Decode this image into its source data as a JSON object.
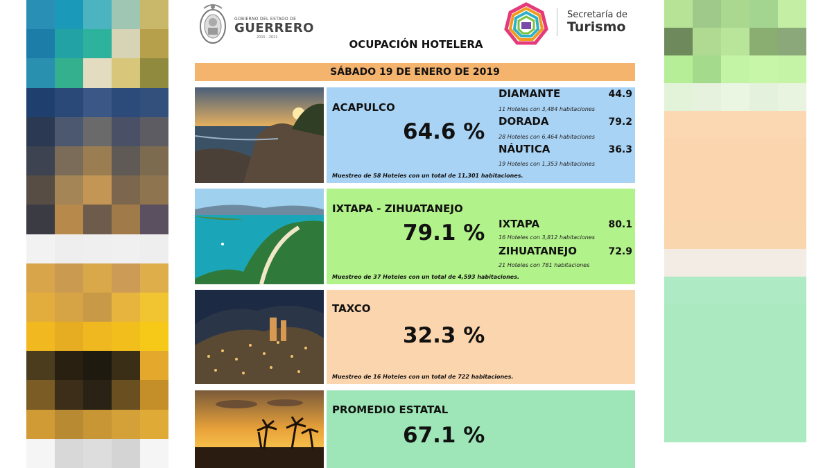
{
  "header": {
    "gov_small": "GOBIERNO DEL ESTADO DE",
    "gov_name": "GUERRERO",
    "gov_years": "2015 - 2021",
    "secretaria": "Secretaría de",
    "turismo": "Turismo",
    "title": "OCUPACIÓN HOTELERA"
  },
  "date": "SÁBADO 19 DE ENERO DE 2019",
  "colors": {
    "acapulco_bg": "#a9d3f5",
    "ixtapa_bg": "#b2f28a",
    "taxco_bg": "#fbd5ad",
    "promedio_bg": "#9ee6b7",
    "date_bar": "#f5b46e"
  },
  "acapulco": {
    "name": "ACAPULCO",
    "pct": "64.6 %",
    "zones": [
      {
        "name": "DIAMANTE",
        "value": "44.9",
        "detail": "11 Hoteles con 3,484 habitaciones"
      },
      {
        "name": "DORADA",
        "value": "79.2",
        "detail": "28 Hoteles con 6,464 habitaciones"
      },
      {
        "name": "NÁUTICA",
        "value": "36.3",
        "detail": "19 Hoteles con 1,353 habitaciones"
      }
    ],
    "sample": "Muestreo de 58 Hoteles con un total de 11,301 habitaciones."
  },
  "ixtapa": {
    "name": "IXTAPA - ZIHUATANEJO",
    "pct": "79.1 %",
    "zones": [
      {
        "name": "IXTAPA",
        "value": "80.1",
        "detail": "16 Hoteles con 3,812 habitaciones"
      },
      {
        "name": "ZIHUATANEJO",
        "value": "72.9",
        "detail": "21 Hoteles con 781 habitaciones"
      }
    ],
    "sample": "Muestreo de 37 Hoteles con un total de 4,593 habitaciones."
  },
  "taxco": {
    "name": "TAXCO",
    "pct": "32.3 %",
    "sample": "Muestreo de 16 Hoteles con un total de 722 habitaciones."
  },
  "promedio": {
    "name": "PROMEDIO ESTATAL",
    "pct": "67.1 %"
  }
}
